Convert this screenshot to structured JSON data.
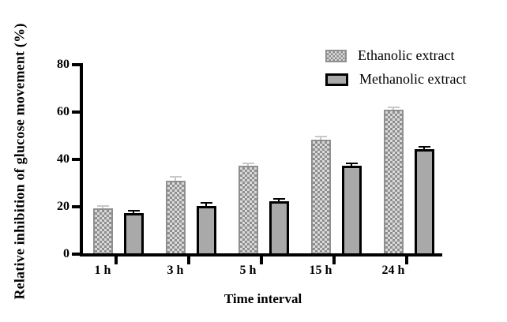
{
  "chart_data": {
    "type": "bar",
    "categories": [
      "1 h",
      "3 h",
      "5 h",
      "15 h",
      "24 h"
    ],
    "series": [
      {
        "name": "Ethanolic extract",
        "values": [
          19.5,
          31,
          37.5,
          48.5,
          61
        ],
        "errors": [
          0.8,
          1.3,
          0.7,
          1.0,
          0.8
        ],
        "fill_style": "checker",
        "fill_color": "#8f8f8f",
        "fill_alt_color": "#dadada",
        "border_color": "#8f8f8f",
        "error_color": "#c8c8c8"
      },
      {
        "name": "Methanolic extract",
        "values": [
          17.5,
          20.5,
          22.5,
          37.3,
          44.5
        ],
        "errors": [
          0.8,
          1.0,
          0.8,
          0.7,
          0.7
        ],
        "fill_style": "solid",
        "fill_color": "#a9a9a9",
        "fill_alt_color": "#a9a9a9",
        "border_color": "#000000",
        "error_color": "#000000"
      }
    ],
    "title": "",
    "xlabel": "Time interval",
    "ylabel": "Relative inhibition of glucose movement (%)",
    "ylim": [
      0,
      80
    ],
    "yticks": [
      0,
      20,
      40,
      60,
      80
    ],
    "grid": false,
    "legend_position": "top-right",
    "axis_color": "#000000",
    "background_color": "#ffffff"
  },
  "legend": {
    "items": [
      {
        "label": "Ethanolic extract"
      },
      {
        "label": "Methanolic extract"
      }
    ]
  }
}
